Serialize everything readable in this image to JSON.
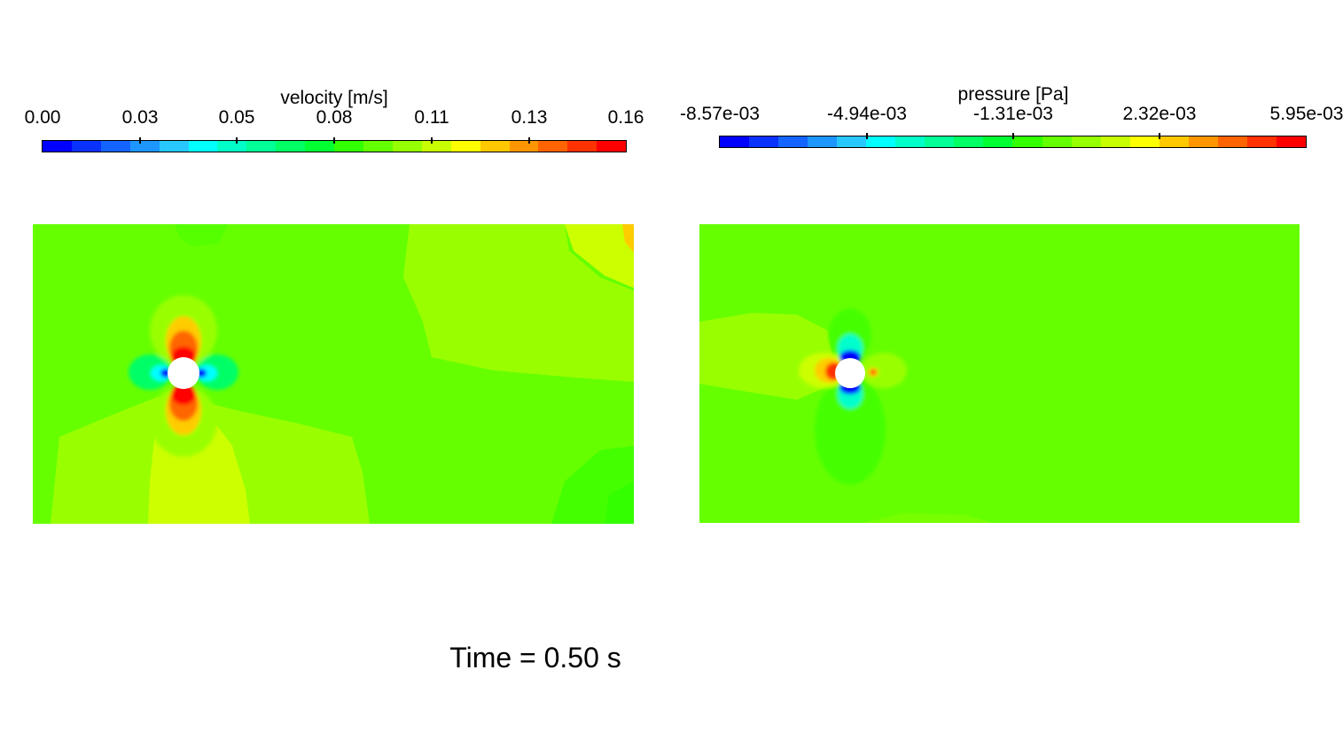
{
  "velocity": {
    "title": "velocity  [m/s]",
    "ticks": [
      "0.00",
      "0.03",
      "0.05",
      "0.08",
      "0.11",
      "0.13",
      "0.16"
    ],
    "colormap": [
      "#0000ff",
      "#0a32ff",
      "#1464ff",
      "#1e96ff",
      "#28c8ff",
      "#00ffff",
      "#00ffc8",
      "#00ff96",
      "#00ff64",
      "#00ff32",
      "#32ff00",
      "#64ff00",
      "#96ff00",
      "#c8ff00",
      "#ffff00",
      "#ffc800",
      "#ff9600",
      "#ff6400",
      "#ff3200",
      "#ff0000"
    ],
    "field_colors": {
      "background": "#66ff00",
      "light": "#99ff00",
      "yellowish": "#ccff00",
      "deep": "#33ff00"
    }
  },
  "pressure": {
    "title": "pressure [Pa]",
    "ticks": [
      "-8.57e-03",
      "-4.94e-03",
      "-1.31e-03",
      "2.32e-03",
      "5.95e-03"
    ],
    "colormap": [
      "#0000ff",
      "#0a32ff",
      "#1464ff",
      "#1e96ff",
      "#28c8ff",
      "#00ffff",
      "#00ffc8",
      "#00ff96",
      "#00ff64",
      "#00ff32",
      "#32ff00",
      "#64ff00",
      "#96ff00",
      "#c8ff00",
      "#ffff00",
      "#ffc800",
      "#ff9600",
      "#ff6400",
      "#ff3200",
      "#ff0000"
    ],
    "field_colors": {
      "background": "#66ff00",
      "light": "#99ff00",
      "deep": "#33ff00"
    }
  },
  "time_label": "Time = 0.50 s"
}
